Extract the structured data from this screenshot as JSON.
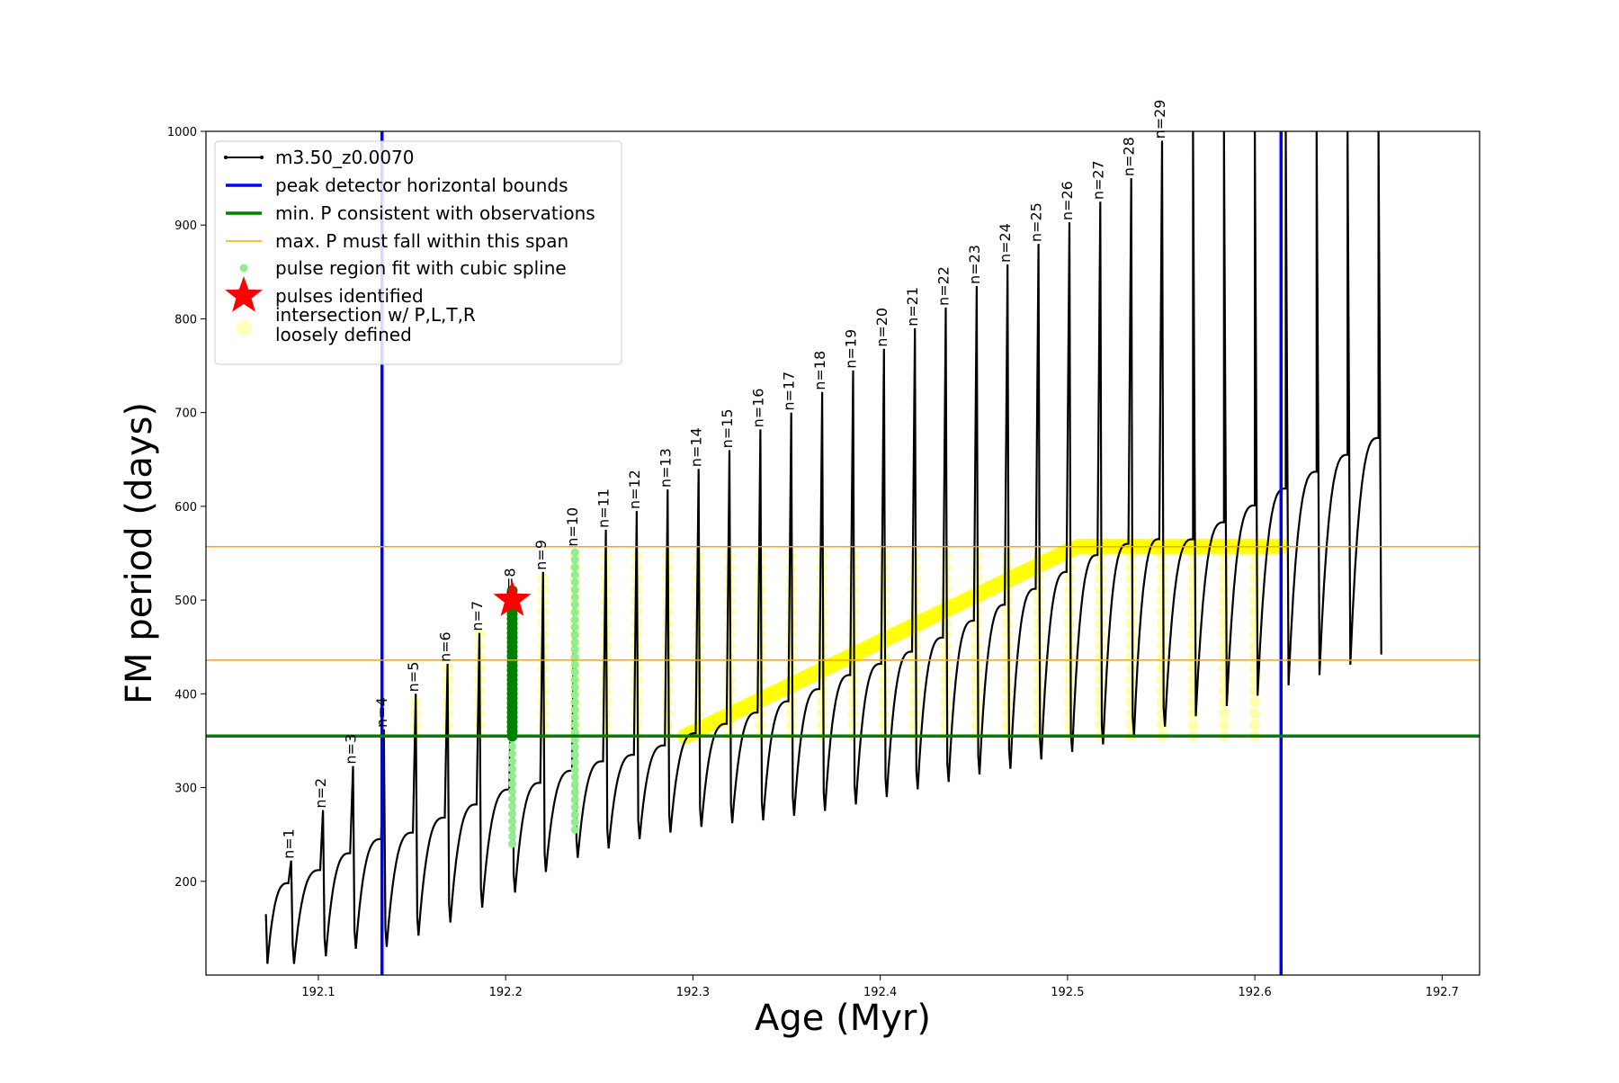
{
  "chart_data": {
    "type": "line",
    "xlabel": "Age (Myr)",
    "ylabel": "FM period (days)",
    "xlim": [
      192.04,
      192.72
    ],
    "ylim": [
      100,
      1000
    ],
    "x_ticks": [
      192.1,
      192.2,
      192.3,
      192.4,
      192.5,
      192.6,
      192.7
    ],
    "y_ticks": [
      200,
      300,
      400,
      500,
      600,
      700,
      800,
      900,
      1000
    ],
    "x_tick_labels": [
      "192.1",
      "192.2",
      "192.3",
      "192.4",
      "192.5",
      "192.6",
      "192.7"
    ],
    "y_tick_labels": [
      "200",
      "300",
      "400",
      "500",
      "600",
      "700",
      "800",
      "900",
      "1000"
    ],
    "grid": false,
    "legend_position": "top-left",
    "legend": [
      {
        "label": "m3.50_z0.0070",
        "style": "line-marker",
        "color": "#000000"
      },
      {
        "label": "peak detector horizontal bounds",
        "style": "line",
        "color": "#0000ff"
      },
      {
        "label": "min. P consistent with observations",
        "style": "line",
        "color": "#008000"
      },
      {
        "label": "max. P must fall within this span",
        "style": "line",
        "color": "#ffa500"
      },
      {
        "label": "pulse region fit with cubic spline",
        "style": "dot",
        "color": "#90ee90"
      },
      {
        "label": "pulses identified",
        "style": "star",
        "color": "#ff0000"
      },
      {
        "label": "intersection w/ P,L,T,R\nloosely defined",
        "style": "circle",
        "color": "#ffff99"
      }
    ],
    "reference_lines": {
      "vertical_blue": [
        192.134,
        192.614
      ],
      "horizontal_green": 355,
      "horizontal_orange": [
        436,
        557
      ]
    },
    "pulse_labels": [
      "n=1",
      "n=2",
      "n=3",
      "n=4",
      "n=5",
      "n=6",
      "n=7",
      "n=8",
      "n=9",
      "n=10",
      "n=11",
      "n=12",
      "n=13",
      "n=14",
      "n=15",
      "n=16",
      "n=17",
      "n=18",
      "n=19",
      "n=20",
      "n=21",
      "n=22",
      "n=23",
      "n=24",
      "n=25",
      "n=26",
      "n=27",
      "n=28",
      "n=29"
    ],
    "pulses": {
      "peak_age": [
        192.0855,
        192.1025,
        192.1185,
        192.135,
        192.152,
        192.169,
        192.186,
        192.2035,
        192.22,
        192.237,
        192.2535,
        192.27,
        192.2865,
        192.303,
        192.3195,
        192.336,
        192.3525,
        192.369,
        192.3855,
        192.402,
        192.4185,
        192.435,
        192.4515,
        192.468,
        192.4845,
        192.501,
        192.5175,
        192.534,
        192.5505
      ],
      "peak_period": [
        222,
        276,
        323,
        362,
        400,
        432,
        465,
        500,
        530,
        555,
        575,
        595,
        618,
        640,
        660,
        682,
        700,
        722,
        745,
        768,
        790,
        812,
        835,
        858,
        880,
        903,
        925,
        950,
        990
      ],
      "trough_period": [
        112,
        120,
        128,
        130,
        142,
        156,
        172,
        188,
        210,
        225,
        235,
        245,
        252,
        258,
        262,
        265,
        270,
        275,
        282,
        290,
        298,
        306,
        314,
        320,
        330,
        338,
        346,
        355,
        365
      ],
      "plateau_period": [
        198,
        212,
        230,
        245,
        252,
        268,
        282,
        298,
        305,
        318,
        328,
        335,
        345,
        358,
        368,
        380,
        392,
        405,
        420,
        432,
        445,
        460,
        478,
        495,
        512,
        530,
        548,
        560,
        565
      ]
    },
    "highlighted_pulse": {
      "age": 192.2035,
      "period": 500
    }
  }
}
